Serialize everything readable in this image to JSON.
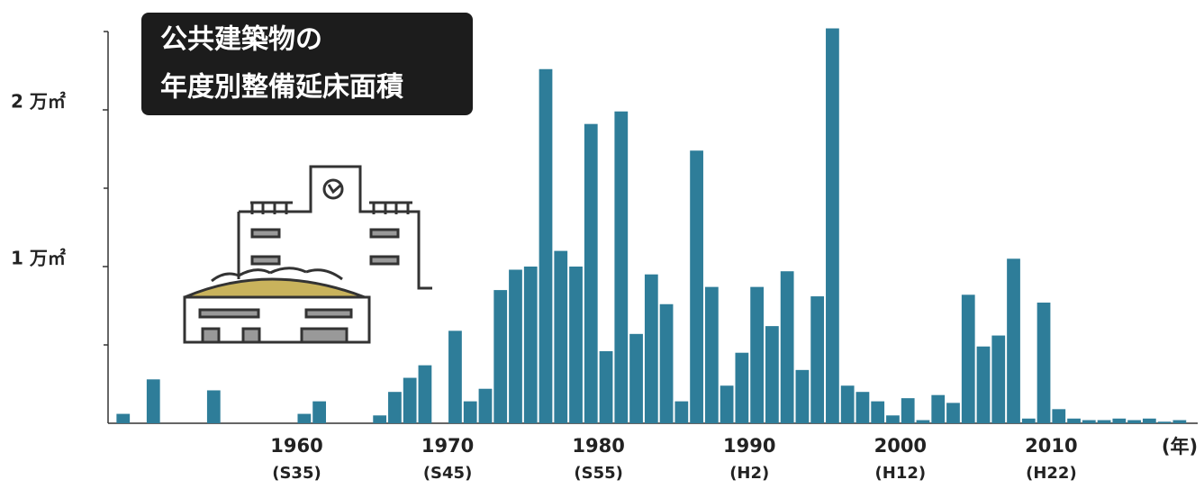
{
  "chart_data": {
    "type": "bar",
    "title_lines": [
      "公共建築物の",
      "年度別整備延床面積"
    ],
    "x_label": "(年)",
    "x": [
      1948,
      1950,
      1954,
      1960,
      1961,
      1965,
      1966,
      1967,
      1968,
      1970,
      1971,
      1972,
      1973,
      1974,
      1975,
      1976,
      1977,
      1978,
      1979,
      1980,
      1981,
      1982,
      1983,
      1984,
      1985,
      1986,
      1987,
      1988,
      1989,
      1990,
      1991,
      1992,
      1993,
      1994,
      1995,
      1996,
      1997,
      1998,
      1999,
      2000,
      2001,
      2002,
      2003,
      2004,
      2005,
      2006,
      2007,
      2008,
      2009,
      2010,
      2011,
      2012,
      2013,
      2014,
      2015,
      2016,
      2017,
      2018
    ],
    "values": [
      0.06,
      0.28,
      0.21,
      0.06,
      0.14,
      0.05,
      0.2,
      0.29,
      0.37,
      0.59,
      0.14,
      0.22,
      0.85,
      0.98,
      1.0,
      2.26,
      1.1,
      1.0,
      1.91,
      0.46,
      1.99,
      0.57,
      0.95,
      0.76,
      0.14,
      1.74,
      0.87,
      0.24,
      0.45,
      0.87,
      0.62,
      0.97,
      0.34,
      0.81,
      2.52,
      0.24,
      0.2,
      0.14,
      0.05,
      0.16,
      0.02,
      0.18,
      0.13,
      0.82,
      0.49,
      0.56,
      1.05,
      0.03,
      0.77,
      0.09,
      0.03,
      0.02,
      0.02,
      0.03,
      0.02,
      0.03,
      0.01,
      0.02
    ],
    "color": "#2e7d99",
    "xlim": [
      1947.5,
      2020
    ],
    "xticks": [
      1960,
      1970,
      1980,
      1990,
      2000,
      2010
    ],
    "era_labels": [
      "(S35)",
      "(S45)",
      "(S55)",
      "(H2)",
      "(H12)",
      "(H22)"
    ],
    "ylim": [
      0,
      2.5
    ],
    "yticks": [
      {
        "value": 1,
        "label": "1 万㎡"
      },
      {
        "value": 2,
        "label": "2 万㎡"
      }
    ],
    "minor_yticks": [
      0.5,
      1.5,
      2.5
    ]
  }
}
